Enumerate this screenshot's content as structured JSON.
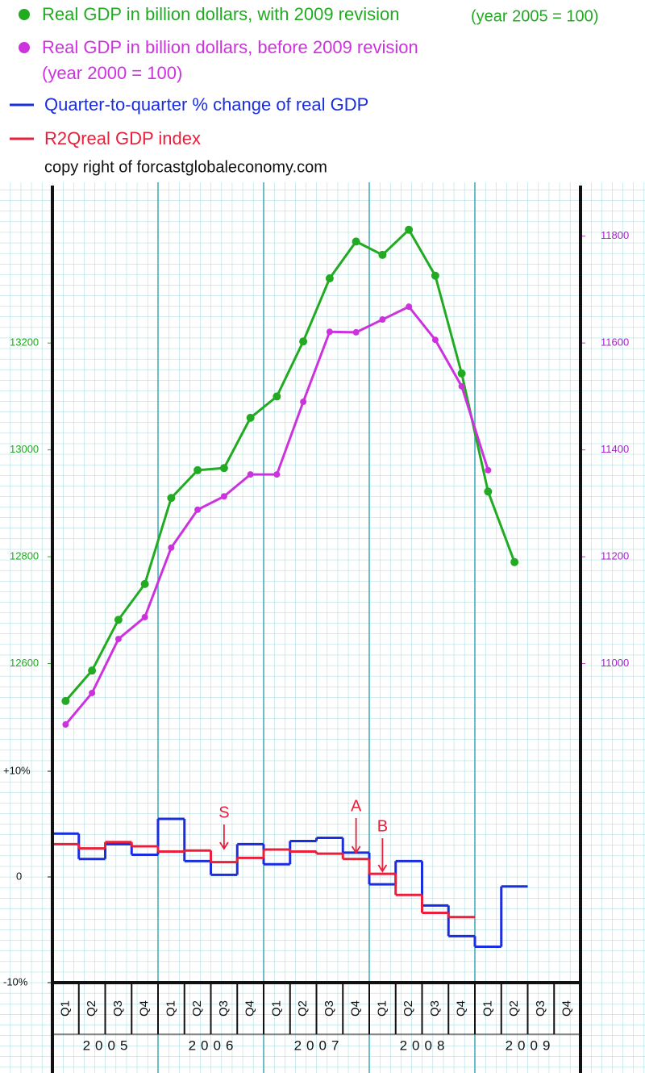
{
  "copyright": "copy right of forcastglobaleconomy.com",
  "chart_data": [
    {
      "type": "line",
      "ylim": [
        12400,
        13500
      ],
      "yticks": [
        12600,
        12800,
        13000,
        13200
      ],
      "y2lim": [
        10800,
        11900
      ],
      "y2ticks": [
        11000,
        11200,
        11400,
        11600,
        11800
      ],
      "series": [
        {
          "name": "Real GDP in billion dollars, with 2009 revision",
          "base": "(year 2005 = 100)",
          "color": "#22aa22",
          "values": [
            12530,
            12587,
            12682,
            12749,
            12910,
            12962,
            12966,
            13060,
            13100,
            13203,
            13321,
            13390,
            13365,
            13412,
            13326,
            13143,
            12922,
            12790,
            null,
            null
          ]
        },
        {
          "name": "Real GDP in billion dollars, before 2009 revision",
          "base": "(year 2000 = 100)",
          "color": "#cc33dd",
          "axis": "y2",
          "values": [
            10886,
            10945,
            11046,
            11087,
            11217,
            11288,
            11313,
            11354,
            11354,
            11490,
            11621,
            11620,
            11644,
            11668,
            11606,
            11519,
            11362,
            null,
            null,
            null
          ]
        }
      ]
    },
    {
      "type": "step",
      "categories": [
        "Q1",
        "Q2",
        "Q3",
        "Q4",
        "Q1",
        "Q2",
        "Q3",
        "Q4",
        "Q1",
        "Q2",
        "Q3",
        "Q4",
        "Q1",
        "Q2",
        "Q3",
        "Q4",
        "Q1",
        "Q2",
        "Q3",
        "Q4"
      ],
      "years": [
        "2005",
        "2006",
        "2007",
        "2008",
        "2009"
      ],
      "ylim": [
        -10,
        10
      ],
      "yticks": [
        {
          "value": 10,
          "label": "+10%"
        },
        0,
        {
          "value": -10,
          "label": "-10%"
        }
      ],
      "annotations": [
        "S",
        "A",
        "B"
      ],
      "series": [
        {
          "name": "Quarter-to-quarter % change of real GDP",
          "color": "#1a2ee0",
          "values": [
            4.1,
            1.7,
            3.1,
            2.1,
            5.5,
            1.5,
            0.2,
            3.1,
            1.2,
            3.4,
            3.7,
            2.3,
            -0.7,
            1.5,
            -2.7,
            -5.6,
            -6.6,
            -0.9,
            null,
            null
          ]
        },
        {
          "name": "R2Qreal GDP index",
          "color": "#e8203c",
          "values": [
            3.1,
            2.7,
            3.3,
            2.9,
            2.4,
            2.5,
            1.4,
            1.8,
            2.6,
            2.4,
            2.2,
            1.7,
            0.3,
            -1.7,
            -3.4,
            -3.8,
            null,
            null,
            null,
            null
          ]
        }
      ]
    }
  ]
}
